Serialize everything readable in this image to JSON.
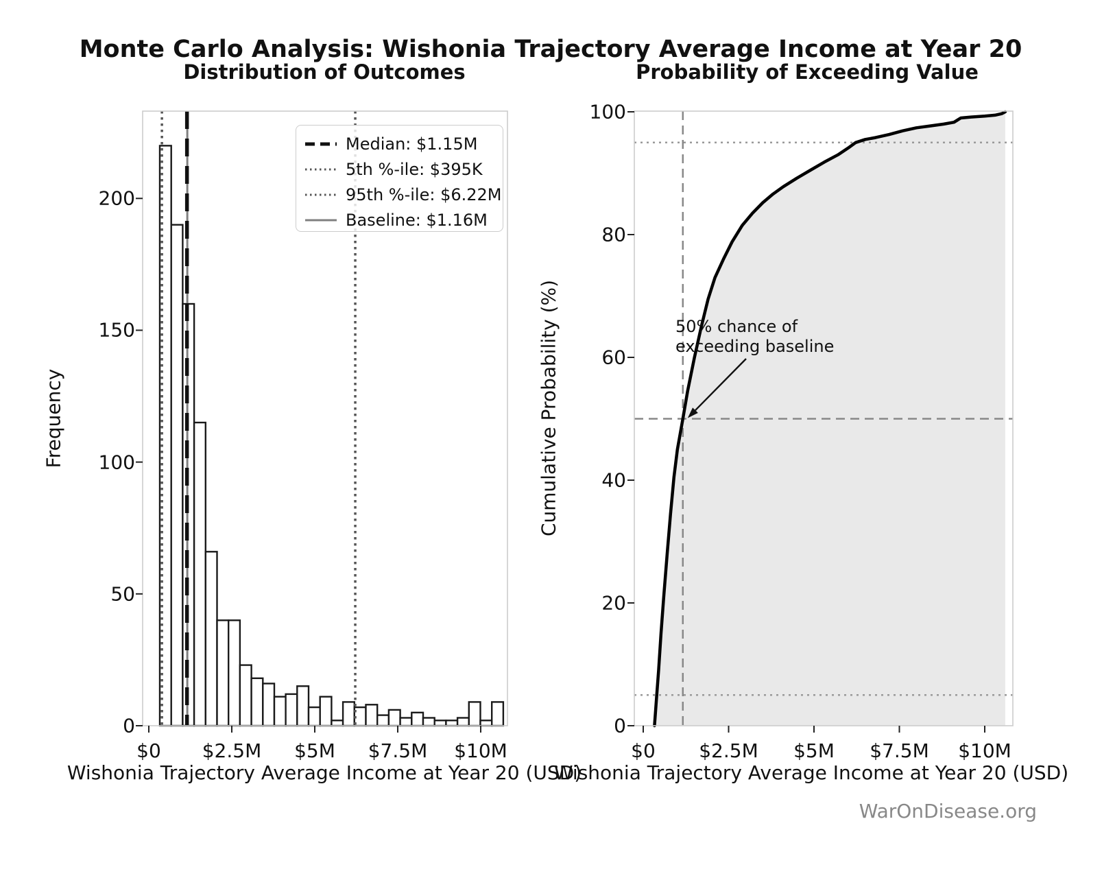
{
  "figure": {
    "title": "Monte Carlo Analysis: Wishonia Trajectory Average Income at Year 20",
    "watermark": "WarOnDisease.org"
  },
  "left_plot": {
    "title": "Distribution of Outcomes",
    "xlabel": "Wishonia Trajectory Average Income at Year 20 (USD)",
    "ylabel": "Frequency",
    "legend": [
      {
        "label": "Median: $1.15M",
        "style": "dashed",
        "color": "#111111",
        "width": 5
      },
      {
        "label": "5th %-ile: $395K",
        "style": "dotted",
        "color": "#555555",
        "width": 3
      },
      {
        "label": "95th %-ile: $6.22M",
        "style": "dotted",
        "color": "#555555",
        "width": 3
      },
      {
        "label": "Baseline: $1.16M",
        "style": "solid",
        "color": "#808080",
        "width": 3
      }
    ]
  },
  "right_plot": {
    "title": "Probability of Exceeding Value",
    "xlabel": "Wishonia Trajectory Average Income at Year 20 (USD)",
    "ylabel": "Cumulative Probability (%)",
    "annotation": "50% chance of\nexceeding baseline"
  },
  "chart_data": [
    {
      "type": "bar",
      "title": "Distribution of Outcomes",
      "xlabel": "Wishonia Trajectory Average Income at Year 20 (USD)",
      "ylabel": "Frequency",
      "units": "x in millions of USD",
      "bin_start": 0.33,
      "bin_width": 0.345,
      "frequencies": [
        220,
        190,
        160,
        115,
        66,
        40,
        40,
        23,
        18,
        16,
        11,
        12,
        15,
        7,
        11,
        2,
        9,
        7,
        8,
        4,
        6,
        3,
        5,
        3,
        2,
        2,
        3,
        9,
        2,
        9
      ],
      "xtick_values": [
        0,
        2.5,
        5,
        7.5,
        10
      ],
      "xtick_labels": [
        "$0",
        "$2.5M",
        "$5M",
        "$7.5M",
        "$10M"
      ],
      "ytick_values": [
        0,
        50,
        100,
        150,
        200
      ],
      "xlim": [
        -0.19,
        11.0
      ],
      "ylim": [
        0,
        233
      ],
      "grid": false,
      "legend_position": "upper right",
      "ref_lines": {
        "median": 1.15,
        "p5": 0.395,
        "p95": 6.22,
        "baseline": 1.16
      },
      "bar_fill": "#ffffff",
      "bar_edge": "#1a1a1a"
    },
    {
      "type": "line",
      "title": "Probability of Exceeding Value",
      "xlabel": "Wishonia Trajectory Average Income at Year 20 (USD)",
      "ylabel": "Cumulative Probability (%)",
      "units": "x in millions of USD, y in percent",
      "cdf_points": [
        [
          0.33,
          0
        ],
        [
          0.395,
          5
        ],
        [
          0.45,
          9
        ],
        [
          0.52,
          15
        ],
        [
          0.6,
          21
        ],
        [
          0.7,
          28
        ],
        [
          0.8,
          34.5
        ],
        [
          0.9,
          40.5
        ],
        [
          1.0,
          45
        ],
        [
          1.16,
          50
        ],
        [
          1.3,
          54.5
        ],
        [
          1.5,
          60
        ],
        [
          1.7,
          65
        ],
        [
          1.9,
          69.5
        ],
        [
          2.1,
          73
        ],
        [
          2.35,
          76
        ],
        [
          2.6,
          78.8
        ],
        [
          2.9,
          81.5
        ],
        [
          3.2,
          83.5
        ],
        [
          3.5,
          85.2
        ],
        [
          3.8,
          86.6
        ],
        [
          4.1,
          87.8
        ],
        [
          4.5,
          89.2
        ],
        [
          4.9,
          90.5
        ],
        [
          5.3,
          91.8
        ],
        [
          5.7,
          93
        ],
        [
          6.0,
          94.1
        ],
        [
          6.22,
          95
        ],
        [
          6.5,
          95.5
        ],
        [
          6.8,
          95.8
        ],
        [
          7.2,
          96.3
        ],
        [
          7.6,
          96.9
        ],
        [
          8.0,
          97.4
        ],
        [
          8.4,
          97.7
        ],
        [
          8.8,
          98.0
        ],
        [
          9.1,
          98.3
        ],
        [
          9.3,
          99.0
        ],
        [
          9.6,
          99.15
        ],
        [
          10.0,
          99.3
        ],
        [
          10.3,
          99.45
        ],
        [
          10.5,
          99.7
        ],
        [
          10.6,
          100
        ]
      ],
      "hlines": [
        95,
        50,
        5
      ],
      "vline": 1.16,
      "xtick_values": [
        0,
        2.5,
        5,
        7.5,
        10
      ],
      "xtick_labels": [
        "$0",
        "$2.5M",
        "$5M",
        "$7.5M",
        "$10M"
      ],
      "ytick_values": [
        0,
        20,
        40,
        60,
        80,
        100
      ],
      "xlim": [
        -0.26,
        10.82
      ],
      "ylim": [
        0,
        100
      ],
      "fill_color": "#e9e9e9",
      "line_color": "#000000",
      "annotation": {
        "text": "50% chance of\nexceeding baseline",
        "points_to": [
          1.16,
          50
        ]
      }
    }
  ]
}
